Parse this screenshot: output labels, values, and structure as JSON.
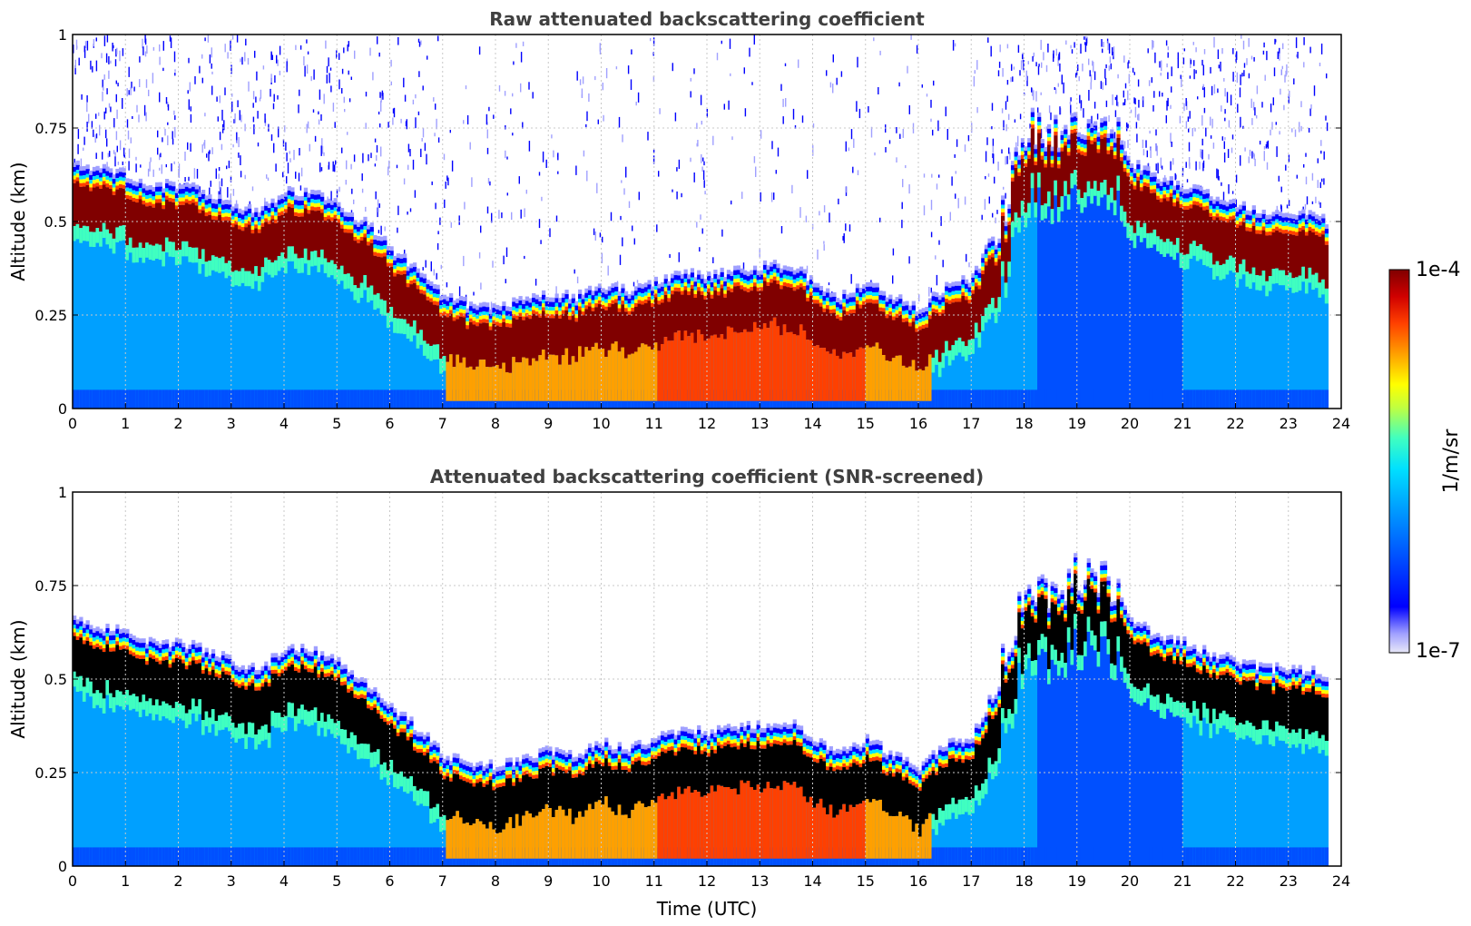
{
  "colors": {
    "colormap": [
      "#e8e8f8",
      "#a0a0ff",
      "#0000ff",
      "#0050ff",
      "#00a0ff",
      "#00e0ff",
      "#40ffc0",
      "#c0ff40",
      "#ffff00",
      "#ffa000",
      "#ff4000",
      "#d00000",
      "#800000"
    ],
    "grid": "#c8c8c8",
    "title": "#404040",
    "screened_core": "#000000"
  },
  "chart_data": [
    {
      "type": "heatmap",
      "title": "Raw attenuated backscattering coefficient",
      "xlabel": "",
      "ylabel": "Altitude (km)",
      "xlim": [
        0,
        24
      ],
      "ylim": [
        0,
        1
      ],
      "xticks": [
        "0",
        "1",
        "2",
        "3",
        "4",
        "5",
        "6",
        "7",
        "8",
        "9",
        "10",
        "11",
        "12",
        "13",
        "14",
        "15",
        "16",
        "17",
        "18",
        "19",
        "20",
        "21",
        "22",
        "23",
        "24"
      ],
      "yticks": [
        "0",
        "0.25",
        "0.5",
        "0.75",
        "1"
      ],
      "data_extent_hours": 23.75,
      "grid": true,
      "layer_top_km": {
        "x": [
          0,
          0.5,
          1,
          1.5,
          2,
          2.5,
          3,
          3.5,
          4,
          4.5,
          5,
          5.5,
          6,
          6.5,
          7,
          7.5,
          8,
          8.5,
          9,
          9.5,
          10,
          10.5,
          11,
          11.5,
          12,
          12.5,
          13,
          13.5,
          14,
          14.5,
          15,
          15.5,
          16,
          16.5,
          17,
          17.5,
          18,
          18.5,
          19,
          19.5,
          20,
          20.5,
          21,
          21.5,
          22,
          22.5,
          23,
          23.5,
          23.75
        ],
        "y": [
          0.66,
          0.64,
          0.63,
          0.6,
          0.6,
          0.58,
          0.55,
          0.53,
          0.58,
          0.58,
          0.55,
          0.5,
          0.43,
          0.37,
          0.3,
          0.28,
          0.27,
          0.29,
          0.31,
          0.3,
          0.33,
          0.32,
          0.34,
          0.37,
          0.36,
          0.37,
          0.38,
          0.39,
          0.34,
          0.3,
          0.34,
          0.3,
          0.27,
          0.33,
          0.35,
          0.5,
          0.75,
          0.73,
          0.78,
          0.78,
          0.66,
          0.62,
          0.6,
          0.57,
          0.55,
          0.53,
          0.53,
          0.52,
          0.5
        ]
      },
      "colorbar_ref": "colorbar"
    },
    {
      "type": "heatmap",
      "title": "Attenuated backscattering coefficient (SNR-screened)",
      "xlabel": "Time (UTC)",
      "ylabel": "Altitude (km)",
      "xlim": [
        0,
        24
      ],
      "ylim": [
        0,
        1
      ],
      "xticks": [
        "0",
        "1",
        "2",
        "3",
        "4",
        "5",
        "6",
        "7",
        "8",
        "9",
        "10",
        "11",
        "12",
        "13",
        "14",
        "15",
        "16",
        "17",
        "18",
        "19",
        "20",
        "21",
        "22",
        "23",
        "24"
      ],
      "yticks": [
        "0",
        "0.25",
        "0.5",
        "0.75",
        "1"
      ],
      "data_extent_hours": 23.75,
      "grid": true,
      "note": "values above colorbar range rendered black",
      "colorbar_ref": "colorbar"
    }
  ],
  "colorbar": {
    "label": "1/m/sr",
    "max_label": "1e-4",
    "min_label": "1e-7",
    "scale": "log",
    "range": [
      1e-07,
      0.0001
    ]
  }
}
